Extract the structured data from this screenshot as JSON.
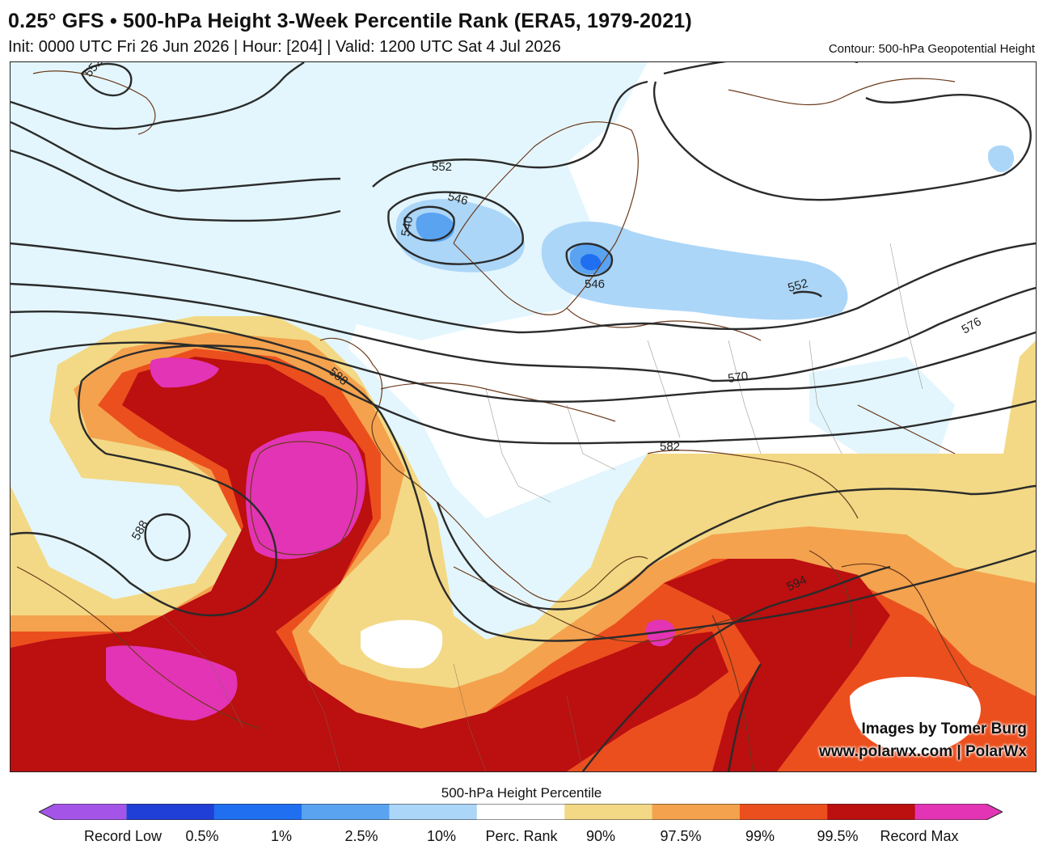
{
  "header": {
    "title": "0.25° GFS • 500-hPa Height 3-Week Percentile Rank (ERA5, 1979-2021)",
    "subtitle": "Init: 0000 UTC Fri 26 Jun 2026 | Hour: [204] | Valid: 1200 UTC Sat 4 Jul 2026",
    "contour_note": "Contour: 500-hPa Geopotential Height"
  },
  "map": {
    "contour_labels": [
      "552",
      "552",
      "546",
      "540",
      "546",
      "552",
      "576",
      "570",
      "588",
      "588",
      "582",
      "594"
    ]
  },
  "credits": {
    "line1": "Images by Tomer Burg",
    "line2": "www.polarwx.com | PolarWx"
  },
  "colorbar": {
    "title": "500-hPa Height Percentile",
    "labels": [
      "Record Low",
      "0.5%",
      "1%",
      "2.5%",
      "10%",
      "Perc. Rank",
      "90%",
      "97.5%",
      "99%",
      "99.5%",
      "Record Max"
    ],
    "colors": [
      "#a455e8",
      "#1f3fd6",
      "#1f6ff0",
      "#5aa3f0",
      "#acd6f8",
      "#ffffff",
      "#f3d985",
      "#f4a24e",
      "#ec4f1e",
      "#bb0f10",
      "#e234b4"
    ]
  }
}
